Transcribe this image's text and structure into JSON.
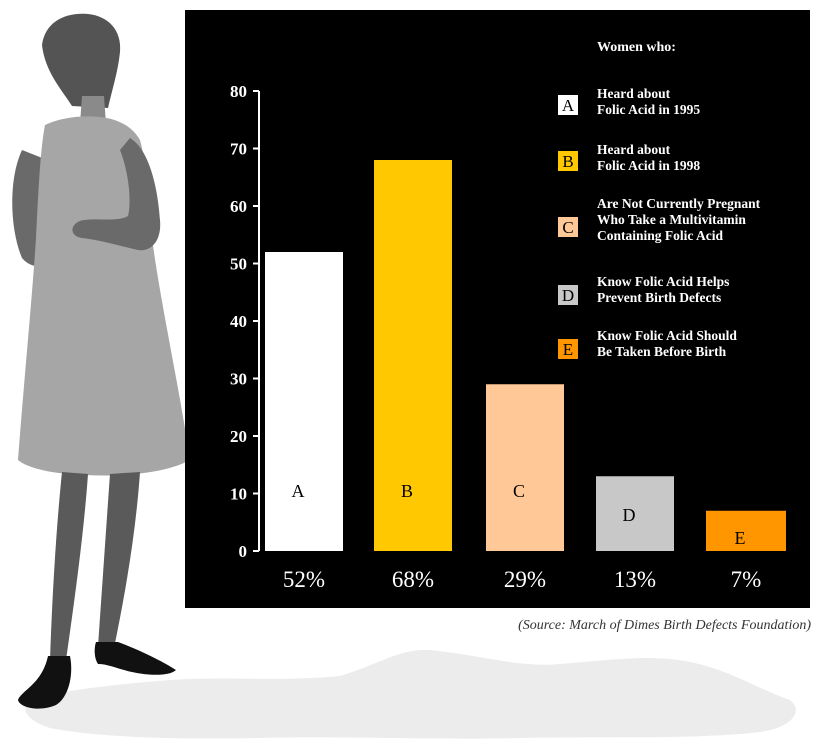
{
  "chart_data": {
    "type": "bar",
    "categories": [
      "A",
      "B",
      "C",
      "D",
      "E"
    ],
    "values": [
      52,
      68,
      29,
      13,
      7
    ],
    "value_labels": [
      "52%",
      "68%",
      "29%",
      "13%",
      "7%"
    ],
    "yticks": [
      "0",
      "10",
      "20",
      "30",
      "40",
      "50",
      "60",
      "70",
      "80"
    ],
    "ylim": [
      0,
      80
    ],
    "colors": [
      "#ffffff",
      "#ffc800",
      "#ffc896",
      "#c8c8c8",
      "#ff9600"
    ],
    "grid": false
  },
  "legend": {
    "title": "Women who:",
    "items": [
      {
        "letter": "A",
        "text": "Heard about\nFolic Acid in 1995"
      },
      {
        "letter": "B",
        "text": "Heard about\nFolic Acid in 1998"
      },
      {
        "letter": "C",
        "text": "Are Not Currently Pregnant\nWho Take a Multivitamin\nContaining Folic Acid"
      },
      {
        "letter": "D",
        "text": "Know Folic Acid Helps\nPrevent Birth Defects"
      },
      {
        "letter": "E",
        "text": "Know Folic Acid Should\nBe Taken Before Birth"
      }
    ]
  },
  "source": "(Source: March of Dimes Birth Defects Foundation)"
}
